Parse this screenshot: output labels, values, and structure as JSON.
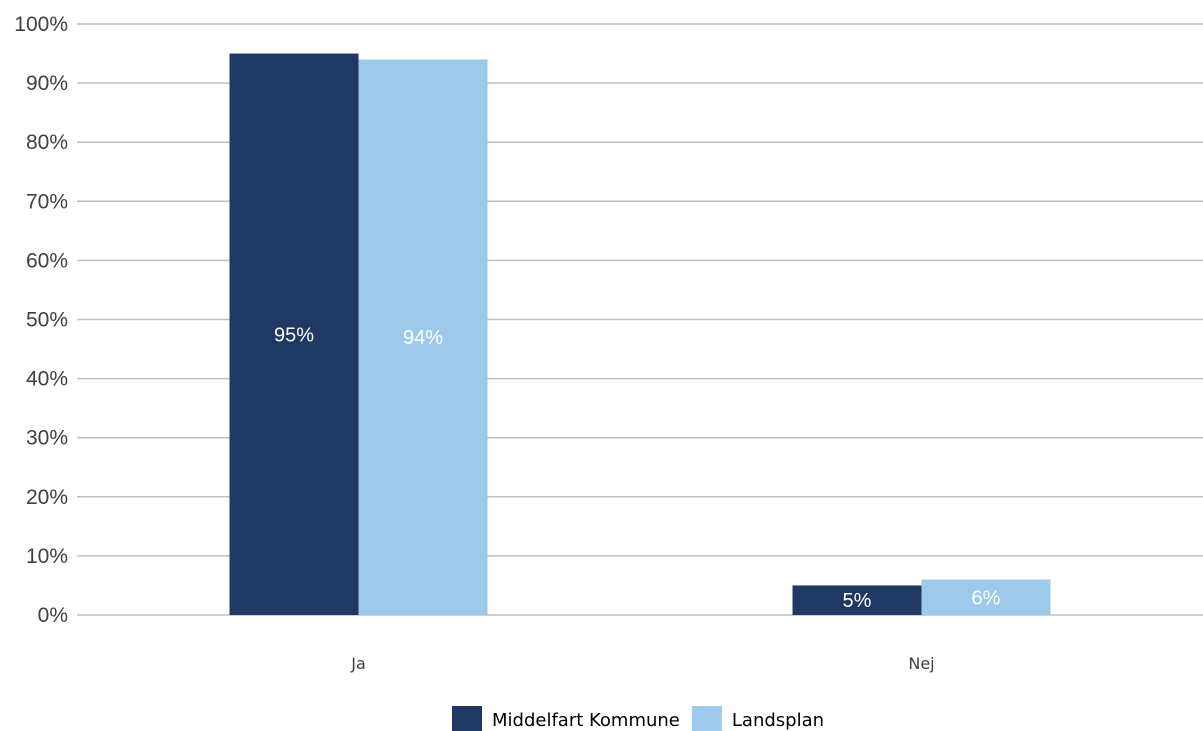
{
  "chart_data": {
    "type": "bar",
    "categories": [
      "Ja",
      "Nej"
    ],
    "series": [
      {
        "name": "Middelfart Kommune",
        "values": [
          95,
          5
        ],
        "labels": [
          "95%",
          "5%"
        ],
        "color": "#203864"
      },
      {
        "name": "Landsplan",
        "values": [
          94,
          6
        ],
        "labels": [
          "94%",
          "6%"
        ],
        "color": "#9dc9ea"
      }
    ],
    "ylim": [
      0,
      100
    ],
    "yticks": [
      0,
      10,
      20,
      30,
      40,
      50,
      60,
      70,
      80,
      90,
      100
    ],
    "ytick_labels": [
      "0%",
      "10%",
      "20%",
      "30%",
      "40%",
      "50%",
      "60%",
      "70%",
      "80%",
      "90%",
      "100%"
    ],
    "grid": true,
    "legend_position": "bottom",
    "title": "",
    "xlabel": "",
    "ylabel": ""
  }
}
